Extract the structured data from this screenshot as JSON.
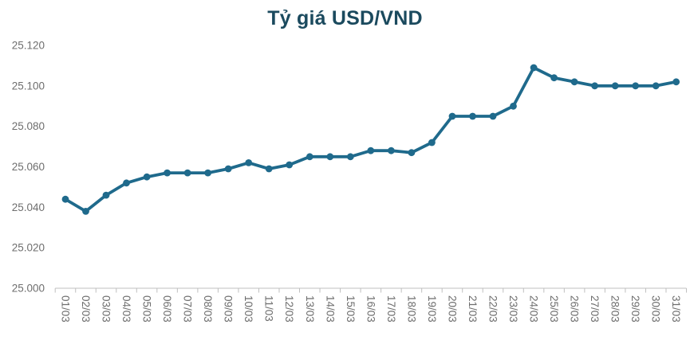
{
  "chart_data": {
    "type": "line",
    "title": "Tỷ giá USD/VND",
    "categories": [
      "01/03",
      "02/03",
      "03/03",
      "04/03",
      "05/03",
      "06/03",
      "07/03",
      "08/03",
      "09/03",
      "10/03",
      "11/03",
      "12/03",
      "13/03",
      "14/03",
      "15/03",
      "16/03",
      "17/03",
      "18/03",
      "19/03",
      "20/03",
      "21/03",
      "22/03",
      "23/03",
      "24/03",
      "25/03",
      "26/03",
      "27/03",
      "28/03",
      "29/03",
      "30/03",
      "31/03"
    ],
    "values": [
      25044,
      25038,
      25046,
      25052,
      25055,
      25057,
      25057,
      25057,
      25059,
      25062,
      25059,
      25061,
      25065,
      25065,
      25065,
      25068,
      25068,
      25067,
      25072,
      25085,
      25085,
      25085,
      25090,
      25109,
      25104,
      25102,
      25100,
      25100,
      25100,
      25100,
      25102
    ],
    "xlabel": "",
    "ylabel": "",
    "ylim": [
      25000,
      25120
    ],
    "y_tick_step": 20,
    "y_tick_labels": [
      "25.000",
      "25.020",
      "25.040",
      "25.060",
      "25.080",
      "25.100",
      "25.120"
    ],
    "grid": false,
    "legend": "none",
    "marker": "circle",
    "colors": {
      "line": "#1f6a8c",
      "title": "#1b4a5e",
      "axis_text": "#6e6e6e",
      "axis_line": "#bfbfbf"
    }
  }
}
